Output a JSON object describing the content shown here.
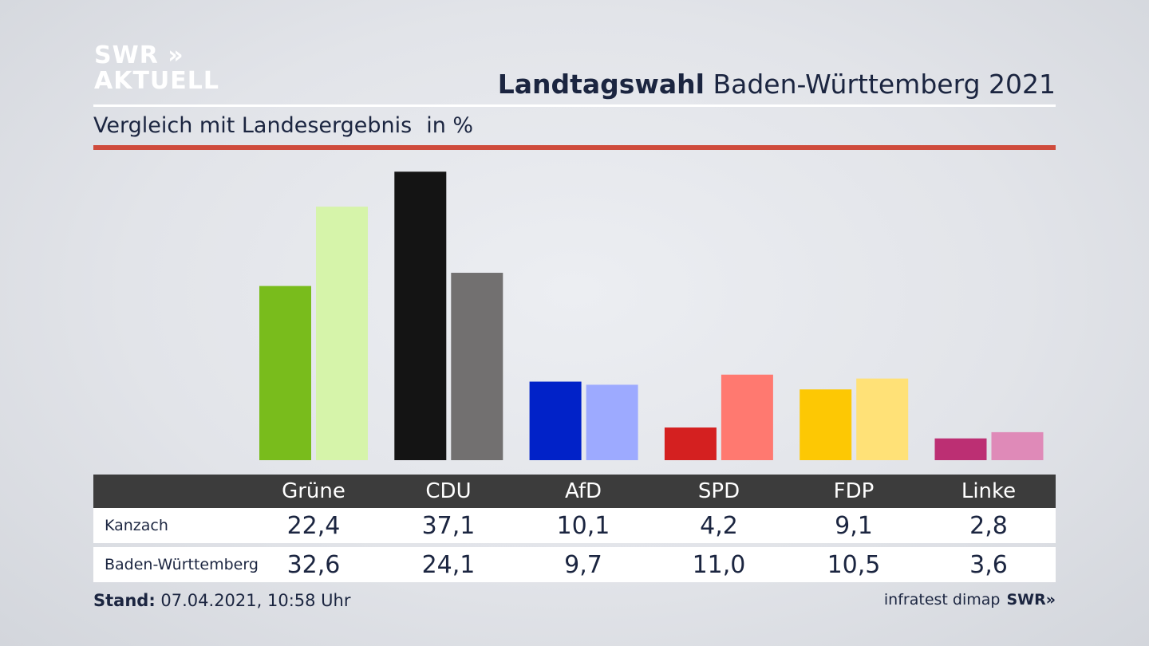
{
  "logo": {
    "line1": "SWR »",
    "line2": "AKTUELL"
  },
  "header": {
    "title_bold": "Landtagswahl",
    "title_rest": " Baden-Württemberg 2021",
    "subtitle": "Vergleich mit Landesergebnis",
    "unit": "in %"
  },
  "chart_data": {
    "type": "bar",
    "categories": [
      "Grüne",
      "CDU",
      "AfD",
      "SPD",
      "FDP",
      "Linke"
    ],
    "series": [
      {
        "name": "Kanzach",
        "values": [
          22.4,
          37.1,
          10.1,
          4.2,
          9.1,
          2.8
        ]
      },
      {
        "name": "Baden-Württemberg",
        "values": [
          32.6,
          24.1,
          9.7,
          11.0,
          10.5,
          3.6
        ]
      }
    ],
    "colors": {
      "Kanzach": [
        "#79bc1c",
        "#141414",
        "#0122c8",
        "#d42020",
        "#fdc804",
        "#bc2f73"
      ],
      "Baden-Württemberg": [
        "#d6f4aa",
        "#727070",
        "#9daaff",
        "#ff7970",
        "#ffe177",
        "#df8ab8"
      ]
    },
    "ylim": [
      0,
      40
    ]
  },
  "table": {
    "headers": [
      "Grüne",
      "CDU",
      "AfD",
      "SPD",
      "FDP",
      "Linke"
    ],
    "rows": [
      {
        "label": "Kanzach",
        "values": [
          "22,4",
          "37,1",
          "10,1",
          "4,2",
          "9,1",
          "2,8"
        ]
      },
      {
        "label": "Baden-Württemberg",
        "values": [
          "32,6",
          "24,1",
          "9,7",
          "11,0",
          "10,5",
          "3,6"
        ]
      }
    ]
  },
  "footer": {
    "stand_label": "Stand:",
    "stand_value": " 07.04.2021, 10:58 Uhr",
    "source": "infratest dimap",
    "brand": "SWR»"
  }
}
